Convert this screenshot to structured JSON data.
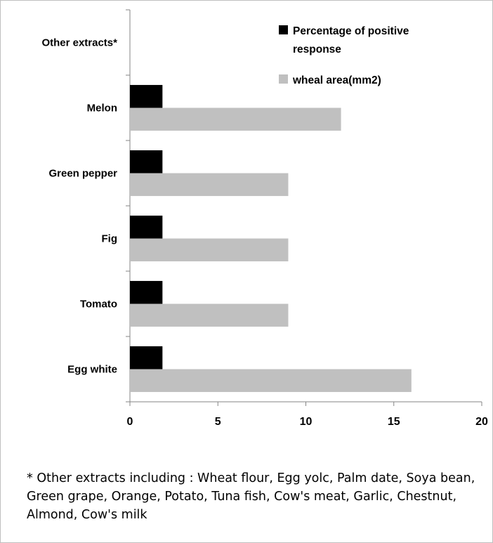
{
  "chart_data": {
    "type": "bar",
    "orientation": "horizontal",
    "categories": [
      "Egg white",
      "Tomato",
      "Fig",
      "Green pepper",
      "Melon",
      "Other extracts*"
    ],
    "series": [
      {
        "name": "Percentage of positive response",
        "color": "#000000",
        "values": [
          1.85,
          1.85,
          1.85,
          1.85,
          1.85,
          null
        ]
      },
      {
        "name": "wheal area(mm2)",
        "color": "#c0c0c0",
        "values": [
          16,
          9,
          9,
          9,
          12,
          null
        ]
      }
    ],
    "xlim": [
      0,
      20
    ],
    "xticks": [
      "0",
      "5",
      "10",
      "15",
      "20"
    ],
    "grid": false,
    "legend_position": "top-right",
    "title": "",
    "xlabel": "",
    "ylabel": ""
  },
  "footnote": "* Other extracts including : Wheat flour, Egg yolc, Palm date, Soya bean, Green grape, Orange, Potato, Tuna fish, Cow's meat, Garlic, Chestnut, Almond, Cow's milk"
}
